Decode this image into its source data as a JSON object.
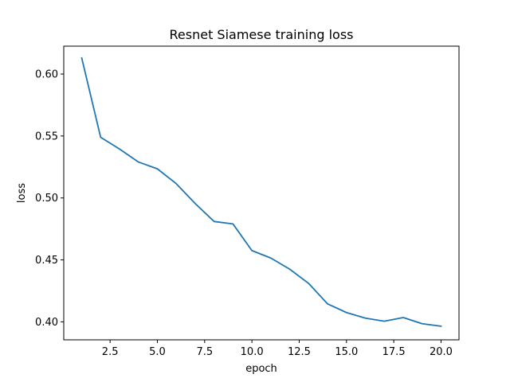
{
  "chart_data": {
    "type": "line",
    "title": "Resnet Siamese training loss",
    "xlabel": "epoch",
    "ylabel": "loss",
    "xlim": [
      0.05,
      20.95
    ],
    "ylim": [
      0.3855,
      0.6225
    ],
    "xticks": [
      2.5,
      5.0,
      7.5,
      10.0,
      12.5,
      15.0,
      17.5,
      20.0
    ],
    "xtick_labels": [
      "2.5",
      "5.0",
      "7.5",
      "10.0",
      "12.5",
      "15.0",
      "17.5",
      "20.0"
    ],
    "yticks": [
      0.4,
      0.45,
      0.5,
      0.55,
      0.6
    ],
    "ytick_labels": [
      "0.40",
      "0.45",
      "0.50",
      "0.55",
      "0.60"
    ],
    "grid": false,
    "series": [
      {
        "color": "#1f77b4",
        "x": [
          1,
          2,
          3,
          4,
          5,
          6,
          7,
          8,
          9,
          10,
          11,
          12,
          13,
          14,
          15,
          16,
          17,
          18,
          19,
          20
        ],
        "y": [
          0.613,
          0.549,
          0.5395,
          0.529,
          0.5235,
          0.5115,
          0.4955,
          0.481,
          0.479,
          0.4575,
          0.4515,
          0.4425,
          0.431,
          0.4145,
          0.4075,
          0.403,
          0.4005,
          0.4035,
          0.3985,
          0.3965
        ]
      }
    ]
  }
}
